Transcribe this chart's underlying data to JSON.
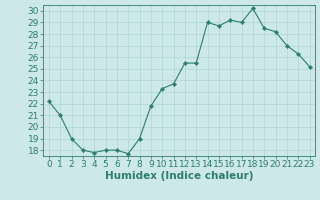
{
  "x": [
    0,
    1,
    2,
    3,
    4,
    5,
    6,
    7,
    8,
    9,
    10,
    11,
    12,
    13,
    14,
    15,
    16,
    17,
    18,
    19,
    20,
    21,
    22,
    23
  ],
  "y": [
    22.2,
    21.0,
    19.0,
    18.0,
    17.8,
    18.0,
    18.0,
    17.7,
    19.0,
    21.8,
    23.3,
    23.7,
    25.5,
    25.5,
    29.0,
    28.7,
    29.2,
    29.0,
    30.2,
    28.5,
    28.2,
    27.0,
    26.3,
    25.2
  ],
  "line_color": "#2e7d6e",
  "marker": "D",
  "marker_size": 2.2,
  "bg_color": "#cce8e8",
  "grid_color_major": "#b0d4d4",
  "grid_color_minor": "#c0dede",
  "xlabel": "Humidex (Indice chaleur)",
  "ylim": [
    17.5,
    30.5
  ],
  "yticks": [
    18,
    19,
    20,
    21,
    22,
    23,
    24,
    25,
    26,
    27,
    28,
    29,
    30
  ],
  "xticks": [
    0,
    1,
    2,
    3,
    4,
    5,
    6,
    7,
    8,
    9,
    10,
    11,
    12,
    13,
    14,
    15,
    16,
    17,
    18,
    19,
    20,
    21,
    22,
    23
  ],
  "xlim": [
    -0.5,
    23.5
  ],
  "tick_label_fontsize": 6.5,
  "xlabel_fontsize": 7.5
}
